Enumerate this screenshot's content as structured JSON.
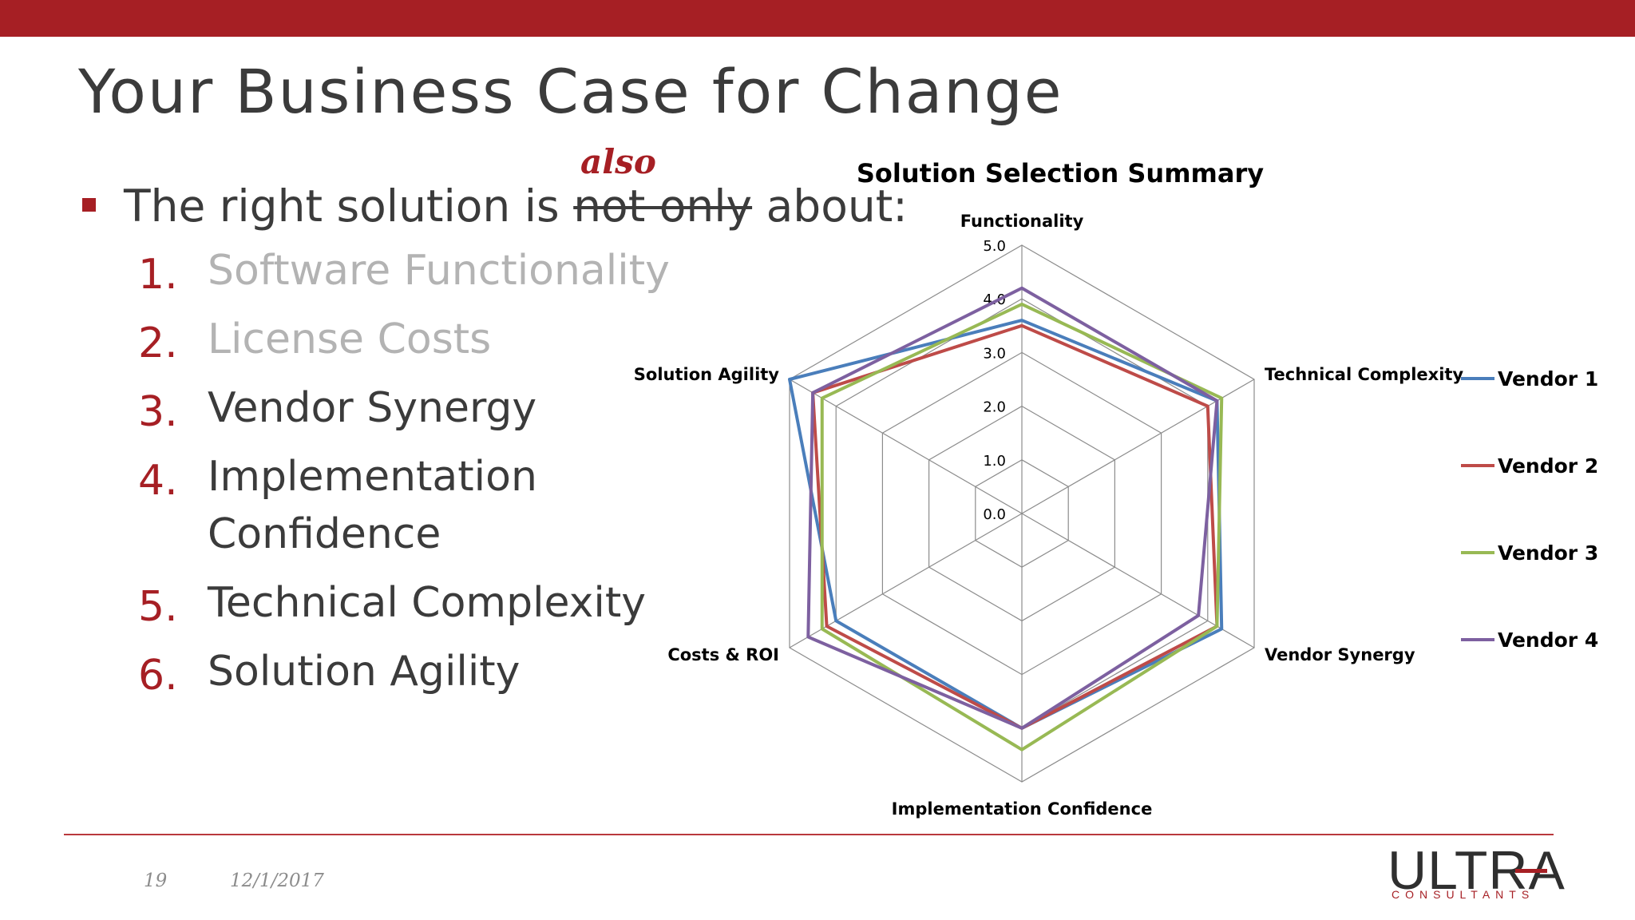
{
  "slide": {
    "title": "Your Business Case for Change",
    "bullet": {
      "lead": "The right solution is",
      "struck": "not only",
      "inserted": "also",
      "tail": "about:"
    },
    "list": [
      {
        "num": "1.",
        "text": "Software Functionality",
        "dimmed": true
      },
      {
        "num": "2.",
        "text": "License Costs",
        "dimmed": true
      },
      {
        "num": "3.",
        "text": "Vendor Synergy",
        "dimmed": false
      },
      {
        "num": "4.",
        "text": "Implementation Confidence",
        "dimmed": false
      },
      {
        "num": "5.",
        "text": "Technical Complexity",
        "dimmed": false
      },
      {
        "num": "6.",
        "text": "Solution Agility",
        "dimmed": false
      }
    ],
    "footer": {
      "page": "19",
      "date": "12/1/2017"
    },
    "logo": {
      "word": "ULTRA",
      "sub": "CONSULTANTS"
    },
    "colors": {
      "accent": "#a61f24",
      "text": "#3b3b3b",
      "dim_text": "#b3b3b3"
    }
  },
  "chart_data": {
    "type": "radar",
    "title": "Solution Selection Summary",
    "axes": [
      "Functionality",
      "Technical Complexity",
      "Vendor Synergy",
      "Implementation Confidence",
      "Costs & ROI",
      "Solution Agility"
    ],
    "scale": {
      "min": 0,
      "max": 5,
      "step": 1,
      "tick_labels": [
        "0.0",
        "1.0",
        "2.0",
        "3.0",
        "4.0",
        "5.0"
      ]
    },
    "grid": true,
    "legend_position": "right",
    "series": [
      {
        "name": "Vendor 1",
        "color": "#4a7ebb",
        "values": [
          3.6,
          4.2,
          4.3,
          4.0,
          4.0,
          5.0
        ]
      },
      {
        "name": "Vendor 2",
        "color": "#be4b48",
        "values": [
          3.5,
          4.0,
          4.2,
          4.0,
          4.2,
          4.5
        ]
      },
      {
        "name": "Vendor 3",
        "color": "#98b954",
        "values": [
          3.9,
          4.3,
          4.2,
          4.4,
          4.3,
          4.3
        ]
      },
      {
        "name": "Vendor 4",
        "color": "#7d60a0",
        "values": [
          4.2,
          4.2,
          3.8,
          4.0,
          4.6,
          4.5
        ]
      }
    ]
  }
}
